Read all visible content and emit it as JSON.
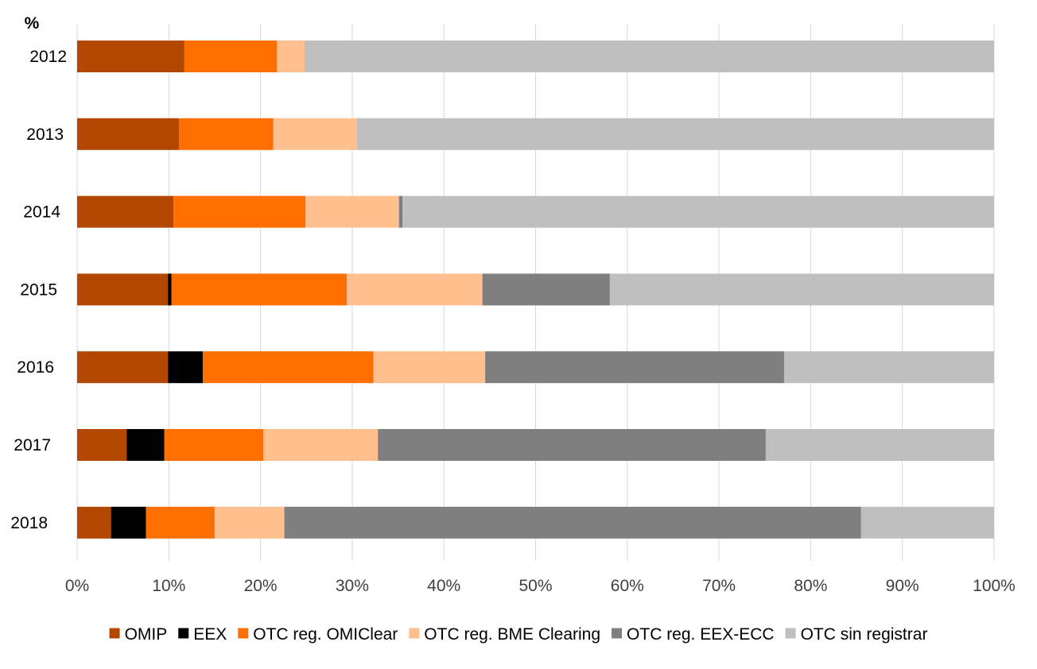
{
  "chart_data": {
    "type": "bar",
    "orientation": "horizontal",
    "stacked": "percent",
    "unit_label": "%",
    "categories": [
      "2012",
      "2013",
      "2014",
      "2015",
      "2016",
      "2017",
      "2018"
    ],
    "series": [
      {
        "name": "OMIP",
        "color": "#b34700",
        "values": [
          11.7,
          11.1,
          10.5,
          9.9,
          9.9,
          5.4,
          3.7
        ]
      },
      {
        "name": "EEX",
        "color": "#000000",
        "values": [
          0,
          0,
          0,
          0.4,
          3.8,
          4.1,
          3.8
        ]
      },
      {
        "name": "OTC reg. OMIClear",
        "color": "#ff6f00",
        "values": [
          10.1,
          10.3,
          14.4,
          19.1,
          18.6,
          10.8,
          7.5
        ]
      },
      {
        "name": "OTC reg. BME Clearing",
        "color": "#ffbf8f",
        "values": [
          3.0,
          9.1,
          10.2,
          14.8,
          12.2,
          12.5,
          7.6
        ]
      },
      {
        "name": "OTC reg. EEX-ECC",
        "color": "#7f7f7f",
        "values": [
          0,
          0,
          0.4,
          13.9,
          32.6,
          42.3,
          62.9
        ]
      },
      {
        "name": "OTC sin registrar",
        "color": "#bfbfbf",
        "values": [
          75.2,
          69.5,
          64.5,
          41.9,
          22.9,
          24.9,
          14.5
        ]
      }
    ],
    "xlim": [
      0,
      100
    ],
    "xticks": [
      "0%",
      "10%",
      "20%",
      "30%",
      "40%",
      "50%",
      "60%",
      "70%",
      "80%",
      "90%",
      "100%"
    ],
    "grid": true,
    "legend_position": "bottom"
  }
}
